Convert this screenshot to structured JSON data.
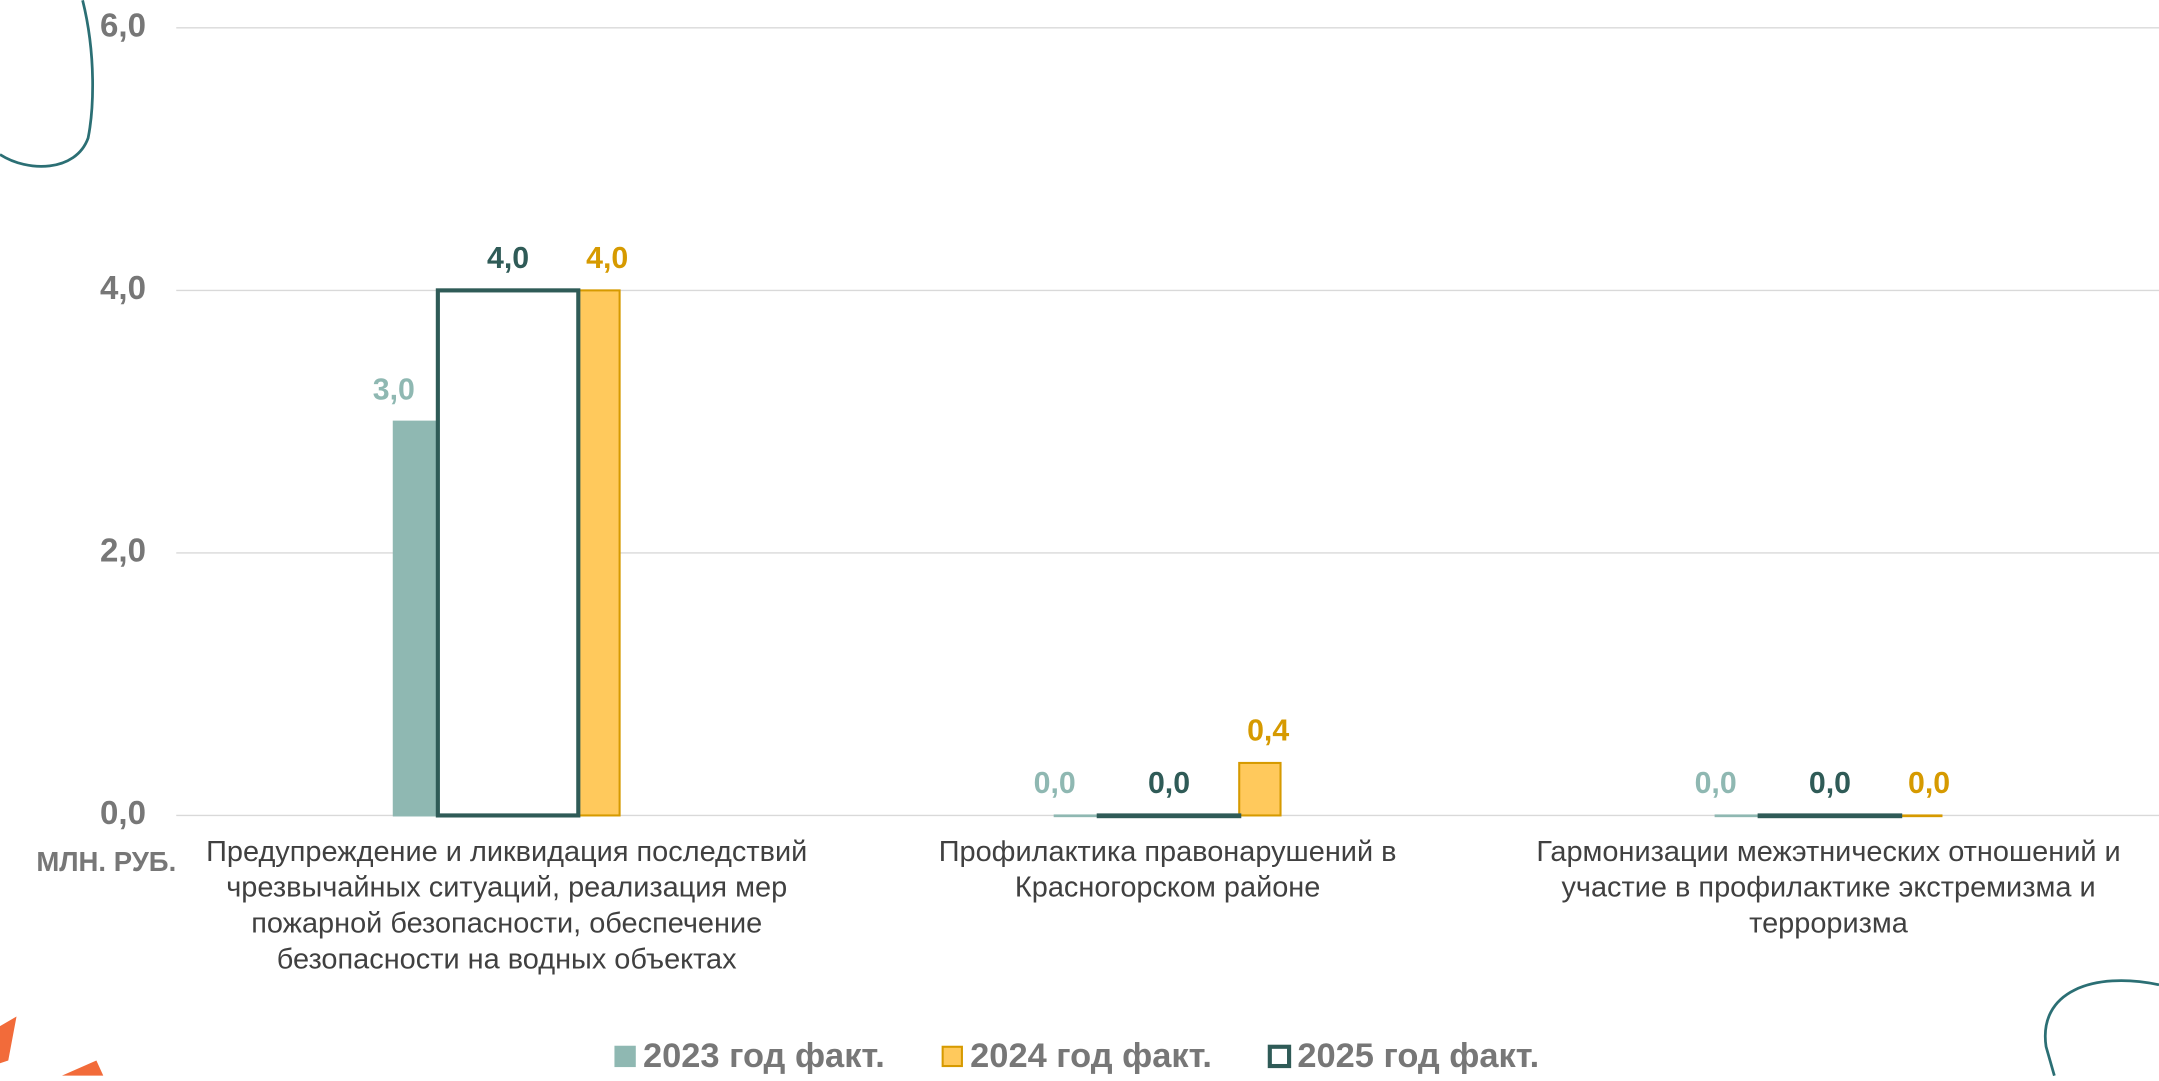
{
  "chart_data": {
    "type": "bar",
    "y_label": "МЛН. РУБ.",
    "categories": [
      "Предупреждение и ликвидация последствий чрезвычайных ситуаций, реализация мер пожарной безопасности, обеспечение безопасности на водных объектах",
      "Профилактика правонарушений в Красногорском районе",
      "Гармонизации межэтнических отношений и участие в профилактике экстремизма и терроризма"
    ],
    "series": [
      {
        "name": "2023 год факт.",
        "color": "#8fb8b2",
        "border": "#8fb8b2",
        "values": [
          3.0,
          0.0,
          0.0
        ],
        "value_labels": [
          "3,0",
          "0,0",
          "0,0"
        ]
      },
      {
        "name": "2024 год факт.",
        "color": "#ffc95c",
        "border": "#d69a00",
        "values": [
          4.0,
          0.4,
          0.0
        ],
        "value_labels": [
          "4,0",
          "0,4",
          "0,0"
        ]
      },
      {
        "name": "2025 год факт.",
        "color": "#ffffff",
        "border": "#2f5b57",
        "values": [
          4.0,
          0.0,
          0.0
        ],
        "value_labels": [
          "4,0",
          "0,0",
          "0,0"
        ]
      }
    ],
    "ylim": [
      0,
      6
    ],
    "yticks": [
      {
        "value": 0,
        "label": "0,0"
      },
      {
        "value": 2,
        "label": "2,0"
      },
      {
        "value": 4,
        "label": "4,0"
      },
      {
        "value": 6,
        "label": "6,0"
      }
    ],
    "grid": true,
    "legend": "bottom"
  }
}
